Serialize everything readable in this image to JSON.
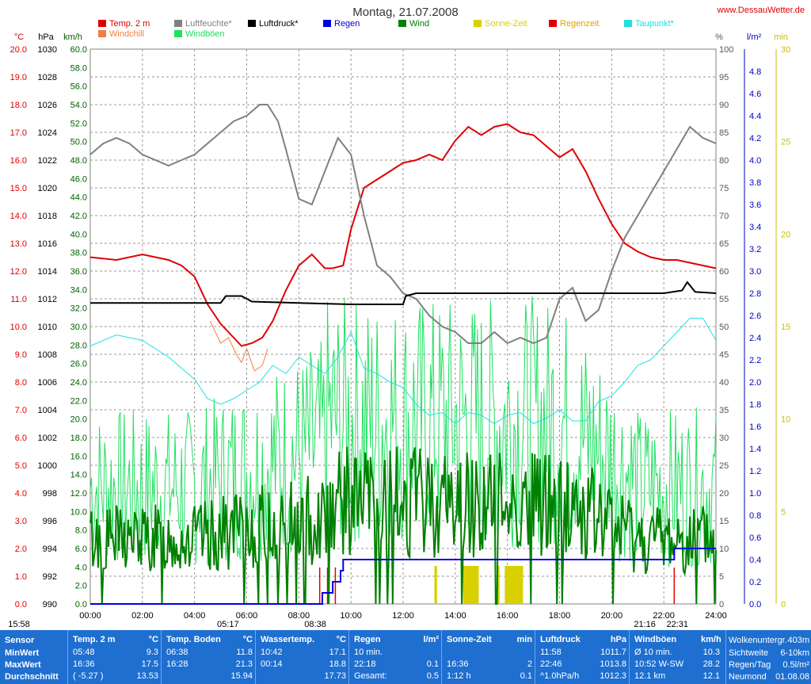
{
  "header": {
    "title": "Montag, 21.07.2008",
    "site": "www.DessauWetter.de"
  },
  "legend": [
    {
      "label": "Temp. 2 m",
      "color": "#e00000"
    },
    {
      "label": "Windchill",
      "color": "#f08040"
    },
    {
      "label": "Luftfeuchte*",
      "color": "#808080"
    },
    {
      "label": "Windböen",
      "color": "#20e060"
    },
    {
      "label": "Luftdruck*",
      "color": "#000000"
    },
    {
      "label": "Regen",
      "color": "#0000e0"
    },
    {
      "label": "Wind",
      "color": "#008000"
    },
    {
      "label": "Sonne-Zeit",
      "color": "#d8d000"
    },
    {
      "label": "Regenzeit",
      "color": "#e00000"
    },
    {
      "label": "Taupunkt*",
      "color": "#20e0e0"
    }
  ],
  "axis_units": {
    "temp": "°C",
    "pressure": "hPa",
    "wind": "km/h",
    "humidity": "%",
    "rain": "l/m²",
    "sun": "min"
  },
  "colors": {
    "temp": "#e00000",
    "windchill": "#f08040",
    "humidity": "#808080",
    "gust": "#20e060",
    "pressure": "#000000",
    "rain": "#0000e0",
    "wind": "#008000",
    "sun": "#d8d000",
    "raintime": "#e00000",
    "dewpoint": "#20e0e0",
    "stats_bg": "#1e6fd0"
  },
  "chart_data": {
    "type": "line",
    "x_ticks": [
      "00:00",
      "02:00",
      "04:00",
      "06:00",
      "08:00",
      "10:00",
      "12:00",
      "14:00",
      "16:00",
      "18:00",
      "20:00",
      "22:00",
      "24:00"
    ],
    "xlim": [
      0,
      24
    ],
    "axes": {
      "temp": {
        "ylim": [
          0,
          20
        ],
        "ticks": [
          "0.0",
          "1.0",
          "2.0",
          "3.0",
          "4.0",
          "5.0",
          "6.0",
          "7.0",
          "8.0",
          "9.0",
          "10.0",
          "11.0",
          "12.0",
          "13.0",
          "14.0",
          "15.0",
          "16.0",
          "17.0",
          "18.0",
          "19.0",
          "20.0"
        ]
      },
      "pressure": {
        "ylim": [
          990,
          1030
        ],
        "ticks": [
          "990",
          "992",
          "994",
          "996",
          "998",
          "1000",
          "1002",
          "1004",
          "1006",
          "1008",
          "1010",
          "1012",
          "1014",
          "1016",
          "1018",
          "1020",
          "1022",
          "1024",
          "1026",
          "1028",
          "1030"
        ]
      },
      "wind": {
        "ylim": [
          0,
          60
        ],
        "ticks": [
          "0.0",
          "2.0",
          "4.0",
          "6.0",
          "8.0",
          "10.0",
          "12.0",
          "14.0",
          "16.0",
          "18.0",
          "20.0",
          "22.0",
          "24.0",
          "26.0",
          "28.0",
          "30.0",
          "32.0",
          "34.0",
          "36.0",
          "38.0",
          "40.0",
          "42.0",
          "44.0",
          "46.0",
          "48.0",
          "50.0",
          "52.0",
          "54.0",
          "56.0",
          "58.0",
          "60.0"
        ]
      },
      "humidity": {
        "ylim": [
          0,
          100
        ],
        "ticks": [
          "0",
          "5",
          "10",
          "15",
          "20",
          "25",
          "30",
          "35",
          "40",
          "45",
          "50",
          "55",
          "60",
          "65",
          "70",
          "75",
          "80",
          "85",
          "90",
          "95",
          "100"
        ]
      },
      "rain": {
        "ylim": [
          0,
          5
        ],
        "ticks": [
          "0.0",
          "0.2",
          "0.4",
          "0.6",
          "0.8",
          "1.0",
          "1.2",
          "1.4",
          "1.6",
          "1.8",
          "2.0",
          "2.2",
          "2.4",
          "2.6",
          "2.8",
          "3.0",
          "3.2",
          "3.4",
          "3.6",
          "3.8",
          "4.0",
          "4.2",
          "4.4",
          "4.6",
          "4.8"
        ]
      },
      "sun": {
        "ylim": [
          0,
          30
        ],
        "ticks": [
          "0",
          "5",
          "10",
          "15",
          "20",
          "25",
          "30"
        ]
      }
    },
    "series": [
      {
        "name": "Temp. 2 m",
        "axis": "temp",
        "x": [
          0,
          1,
          2,
          2.5,
          3,
          3.5,
          4,
          4.5,
          5,
          5.5,
          5.8,
          6.2,
          6.6,
          7,
          7.5,
          8,
          8.5,
          9,
          9.3,
          9.7,
          10,
          10.5,
          11,
          11.5,
          12,
          12.5,
          13,
          13.5,
          14,
          14.5,
          15,
          15.5,
          16,
          16.5,
          17,
          17.5,
          18,
          18.5,
          19,
          19.5,
          20,
          20.5,
          21,
          21.5,
          22,
          22.5,
          23,
          23.5,
          24
        ],
        "values": [
          12.5,
          12.4,
          12.6,
          12.5,
          12.4,
          12.2,
          11.8,
          10.8,
          10.1,
          9.6,
          9.3,
          9.4,
          9.6,
          10.2,
          11.3,
          12.2,
          12.6,
          12.1,
          12.1,
          12.2,
          13.5,
          15.0,
          15.3,
          15.6,
          15.9,
          16.0,
          16.2,
          16.0,
          16.7,
          17.2,
          16.9,
          17.2,
          17.3,
          17.0,
          16.9,
          16.5,
          16.1,
          16.4,
          15.6,
          14.6,
          13.7,
          13.0,
          12.7,
          12.5,
          12.4,
          12.4,
          12.3,
          12.2,
          12.1
        ]
      },
      {
        "name": "Windchill",
        "axis": "temp",
        "x": [
          4.6,
          5,
          5.3,
          5.6,
          5.8,
          6,
          6.3,
          6.6,
          6.8
        ],
        "values": [
          10.2,
          9.4,
          9.6,
          9.0,
          8.7,
          9.2,
          8.4,
          8.6,
          9.2
        ]
      },
      {
        "name": "Luftfeuchte*",
        "axis": "humidity",
        "x": [
          0,
          0.5,
          1,
          1.5,
          2,
          2.5,
          3,
          3.5,
          4,
          4.5,
          5,
          5.5,
          6,
          6.5,
          6.8,
          7.2,
          7.5,
          8,
          8.5,
          9,
          9.5,
          10,
          10.5,
          11,
          11.5,
          12,
          12.5,
          13,
          13.5,
          14,
          14.5,
          15,
          15.5,
          16,
          16.5,
          17,
          17.5,
          18,
          18.5,
          19,
          19.5,
          20,
          20.5,
          21,
          21.5,
          22,
          22.5,
          23,
          23.5,
          24
        ],
        "values": [
          81,
          83,
          84,
          83,
          81,
          80,
          79,
          80,
          81,
          83,
          85,
          87,
          88,
          90,
          90,
          87,
          82,
          73,
          72,
          78,
          84,
          81,
          70,
          61,
          59,
          56,
          55,
          52,
          50,
          49,
          47,
          47,
          49,
          47,
          48,
          47,
          48,
          55,
          57,
          51,
          53,
          60,
          66,
          70,
          74,
          78,
          82,
          86,
          84,
          83
        ]
      },
      {
        "name": "Taupunkt*",
        "axis": "temp",
        "x": [
          0,
          1,
          2,
          3,
          4,
          4.5,
          5,
          5.5,
          6,
          6.5,
          7,
          7.5,
          8,
          8.5,
          9,
          9.5,
          10,
          10.5,
          11,
          11.5,
          12,
          12.5,
          13,
          13.5,
          14,
          14.5,
          15,
          15.5,
          16,
          16.5,
          17,
          17.5,
          18,
          18.5,
          19,
          19.5,
          20,
          20.5,
          21,
          21.5,
          22,
          22.5,
          23,
          23.5,
          24
        ],
        "values": [
          9.3,
          9.7,
          9.5,
          8.9,
          8.1,
          7.4,
          7.2,
          7.4,
          7.7,
          8.0,
          8.6,
          8.3,
          8.9,
          8.6,
          8.3,
          8.9,
          9.8,
          8.5,
          8.3,
          8.0,
          7.8,
          7.2,
          6.8,
          6.9,
          6.5,
          6.9,
          6.8,
          6.5,
          6.8,
          6.9,
          6.5,
          6.7,
          7.0,
          6.6,
          6.6,
          7.3,
          7.5,
          8.0,
          8.6,
          8.8,
          9.3,
          9.8,
          10.3,
          10.3,
          9.5
        ]
      },
      {
        "name": "Luftdruck*",
        "axis": "pressure",
        "x": [
          0,
          4,
          5,
          5.2,
          5.8,
          6,
          6.2,
          8,
          10,
          12,
          12.1,
          12.5,
          18,
          22,
          22.7,
          22.9,
          23.2,
          24
        ],
        "values": [
          1011.7,
          1011.7,
          1011.7,
          1012.2,
          1012.2,
          1012.0,
          1011.8,
          1011.7,
          1011.6,
          1011.6,
          1012.2,
          1012.4,
          1012.4,
          1012.4,
          1012.6,
          1013.2,
          1012.5,
          1012.4
        ]
      },
      {
        "name": "Regen",
        "axis": "rain",
        "x": [
          0,
          8.7,
          8.9,
          9.2,
          9.3,
          9.5,
          9.6,
          9.7,
          20.9,
          21.0,
          22.2,
          22.4,
          22.5,
          24
        ],
        "values": [
          0,
          0,
          0.1,
          0.1,
          0.2,
          0.2,
          0.3,
          0.4,
          0.4,
          0.4,
          0.4,
          0.5,
          0.5,
          0.5
        ]
      },
      {
        "name": "Wind",
        "axis": "wind"
      },
      {
        "name": "Windböen",
        "axis": "wind"
      }
    ],
    "sun_periods": [
      [
        13.2,
        13.3
      ],
      [
        14.3,
        14.9
      ],
      [
        15.6,
        15.7
      ],
      [
        15.9,
        16.6
      ]
    ],
    "rain_periods": [
      8.8,
      9.1,
      9.4,
      22.4
    ],
    "markers": [
      {
        "label": "15:58",
        "x": 0
      },
      {
        "label": "05:17",
        "x": 5.28
      },
      {
        "label": "08:38",
        "x": 8.63
      },
      {
        "label": "21:16",
        "x": 21.27
      },
      {
        "label": "22:31",
        "x": 22.52
      }
    ]
  },
  "stats": {
    "rows": [
      "Sensor",
      "MinWert",
      "MaxWert",
      "Durchschnitt"
    ],
    "columns": [
      {
        "title": "Temp. 2 m",
        "unit": "°C",
        "cells": [
          [
            "05:48",
            "9.3"
          ],
          [
            "16:36",
            "17.5"
          ],
          [
            "( -5.27 )",
            "13.53"
          ]
        ]
      },
      {
        "title": "Temp. Boden",
        "unit": "°C",
        "cells": [
          [
            "06:38",
            "11.8"
          ],
          [
            "16:28",
            "21.3"
          ],
          [
            "",
            "15.94"
          ]
        ]
      },
      {
        "title": "Wassertemp.",
        "unit": "°C",
        "cells": [
          [
            "10:42",
            "17.1"
          ],
          [
            "00:14",
            "18.8"
          ],
          [
            "",
            "17.73"
          ]
        ]
      },
      {
        "title": "Regen",
        "unit": "l/m²",
        "cells": [
          [
            "10 min.",
            ""
          ],
          [
            "22:18",
            "0.1"
          ],
          [
            "Gesamt:",
            "0.5"
          ]
        ]
      },
      {
        "title": "Sonne-Zeit",
        "unit": "min",
        "cells": [
          [
            "",
            ""
          ],
          [
            "16:36",
            "2"
          ],
          [
            "1:12 h",
            "0.1"
          ]
        ]
      },
      {
        "title": "Luftdruck",
        "unit": "hPa",
        "cells": [
          [
            "11:58",
            "1011.7"
          ],
          [
            "22:46",
            "1013.8"
          ],
          [
            "^1.0hPa/h",
            "1012.3"
          ]
        ]
      },
      {
        "title": "Windböen",
        "unit": "km/h",
        "cells": [
          [
            "Ø 10 min.",
            "10.3"
          ],
          [
            "10:52 W-SW",
            "28.2"
          ],
          [
            "12.1 km",
            "12.1"
          ]
        ]
      }
    ],
    "extra": [
      [
        "Wolkenuntergr.",
        "403m"
      ],
      [
        "Sichtweite",
        "6-10km"
      ],
      [
        "Regen/Tag",
        "0.5l/m²"
      ],
      [
        "Neumond",
        "01.08.08"
      ]
    ]
  }
}
